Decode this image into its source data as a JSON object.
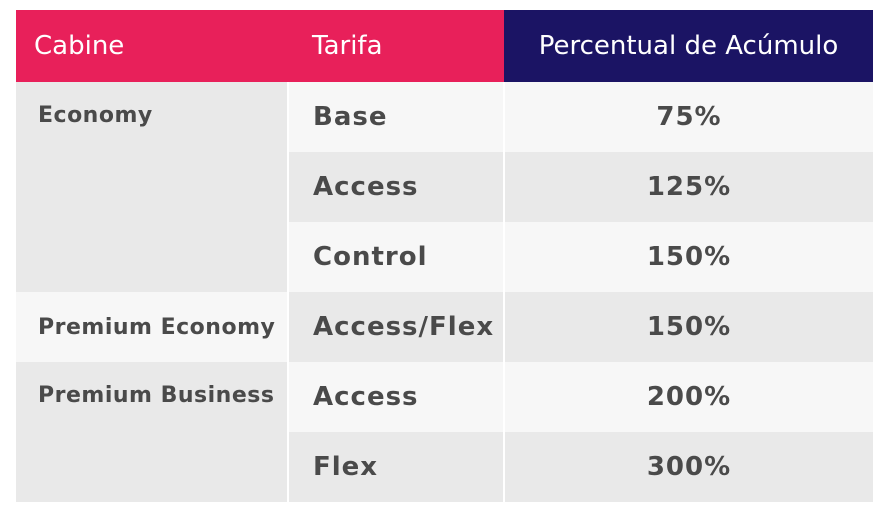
{
  "headers": {
    "cabine": "Cabine",
    "tarifa": "Tarifa",
    "percentual": "Percentual de Acúmulo"
  },
  "rows": [
    {
      "cabine": "Economy",
      "tarifa": "Base",
      "percentual": "75%"
    },
    {
      "cabine": "",
      "tarifa": "Access",
      "percentual": "125%"
    },
    {
      "cabine": "",
      "tarifa": "Control",
      "percentual": "150%"
    },
    {
      "cabine": "Premium Economy",
      "tarifa": "Access/Flex",
      "percentual": "150%"
    },
    {
      "cabine": "Premium Business",
      "tarifa": "Access",
      "percentual": "200%"
    },
    {
      "cabine": "",
      "tarifa": "Flex",
      "percentual": "300%"
    }
  ],
  "colors": {
    "header_pink": "#e8205a",
    "header_navy": "#1b1464",
    "cell_dark": "#e9e9e9",
    "cell_light": "#f7f7f7",
    "text": "#4a4a4a"
  }
}
